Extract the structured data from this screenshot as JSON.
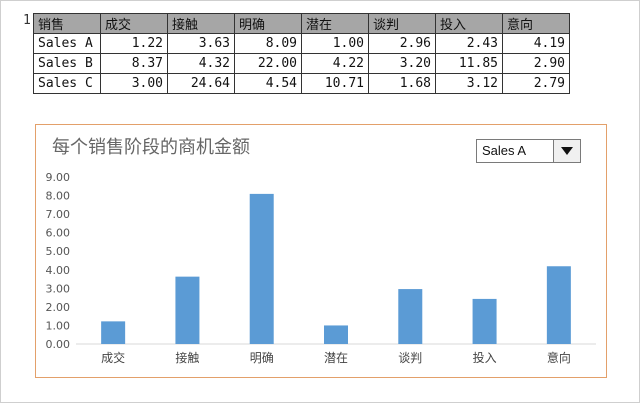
{
  "sheet": {
    "row_number": "1",
    "headers": [
      "销售",
      "成交",
      "接触",
      "明确",
      "潜在",
      "谈判",
      "投入",
      "意向"
    ],
    "rows": [
      {
        "name": "Sales A",
        "values": [
          "1.22",
          "3.63",
          "8.09",
          "1.00",
          "2.96",
          "2.43",
          "4.19"
        ]
      },
      {
        "name": "Sales B",
        "values": [
          "8.37",
          "4.32",
          "22.00",
          "4.22",
          "3.20",
          "11.85",
          "2.90"
        ]
      },
      {
        "name": "Sales C",
        "values": [
          "3.00",
          "24.64",
          "4.54",
          "10.71",
          "1.68",
          "3.12",
          "2.79"
        ]
      }
    ]
  },
  "dropdown": {
    "selected": "Sales A",
    "icon": "triangle-down-icon"
  },
  "chart_data": {
    "type": "bar",
    "title": "每个销售阶段的商机金额",
    "categories": [
      "成交",
      "接触",
      "明确",
      "潜在",
      "谈判",
      "投入",
      "意向"
    ],
    "values": [
      1.22,
      3.63,
      8.09,
      1.0,
      2.96,
      2.43,
      4.19
    ],
    "ylim": [
      0,
      9
    ],
    "yticks": [
      "0.00",
      "1.00",
      "2.00",
      "3.00",
      "4.00",
      "5.00",
      "6.00",
      "7.00",
      "8.00",
      "9.00"
    ],
    "bar_color": "#5b9bd5",
    "grid": false,
    "legend": "none"
  },
  "colors": {
    "chart_border": "#e3a06a",
    "header_fill": "#a6a6a6"
  }
}
